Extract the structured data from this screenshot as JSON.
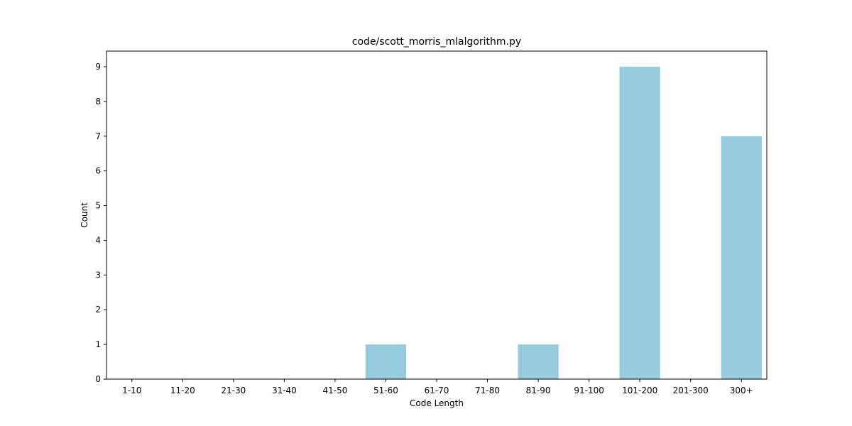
{
  "chart_data": {
    "type": "bar",
    "title": "code/scott_morris_mlalgorithm.py",
    "xlabel": "Code Length",
    "ylabel": "Count",
    "categories": [
      "1-10",
      "11-20",
      "21-30",
      "31-40",
      "41-50",
      "51-60",
      "61-70",
      "71-80",
      "81-90",
      "91-100",
      "101-200",
      "201-300",
      "300+"
    ],
    "values": [
      0,
      0,
      0,
      0,
      0,
      1,
      0,
      0,
      1,
      0,
      9,
      0,
      7
    ],
    "yticks": [
      0,
      1,
      2,
      3,
      4,
      5,
      6,
      7,
      8,
      9
    ],
    "ylim": [
      0,
      9.45
    ],
    "grid": false,
    "bar_color": "#96cade"
  }
}
